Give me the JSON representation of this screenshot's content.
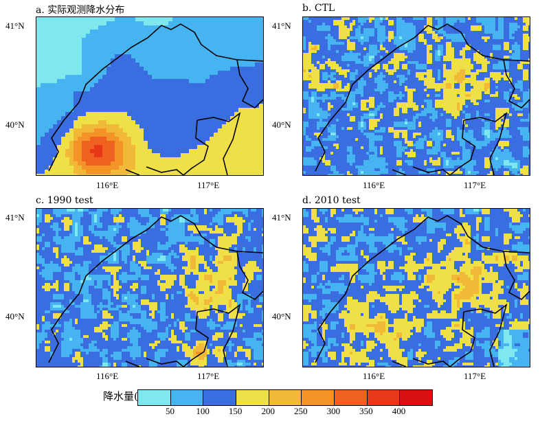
{
  "panels": [
    {
      "id": "a",
      "title": "a. 实际观测降水分布",
      "lat_ticks": [
        "41°N",
        "40°N"
      ],
      "lon_ticks": [
        "116°E",
        "117°E"
      ]
    },
    {
      "id": "b",
      "title": "b. CTL",
      "lat_ticks": [
        "41°N",
        "40°N"
      ],
      "lon_ticks": [
        "116°E",
        "117°E"
      ]
    },
    {
      "id": "c",
      "title": "c. 1990 test",
      "lat_ticks": [
        "41°N",
        "40°N"
      ],
      "lon_ticks": [
        "116°E",
        "117°E"
      ]
    },
    {
      "id": "d",
      "title": "d. 2010 test",
      "lat_ticks": [
        "41°N",
        "40°N"
      ],
      "lon_ticks": [
        "116°E",
        "117°E"
      ]
    }
  ],
  "colorbar": {
    "label": "降水量(mm)",
    "ticks": [
      "50",
      "100",
      "150",
      "200",
      "250",
      "300",
      "350",
      "400"
    ],
    "colors": [
      "#7fe8ee",
      "#45b4f0",
      "#3a6ee0",
      "#f0e048",
      "#f2b838",
      "#f49428",
      "#f06020",
      "#e83818",
      "#d81010"
    ]
  }
}
